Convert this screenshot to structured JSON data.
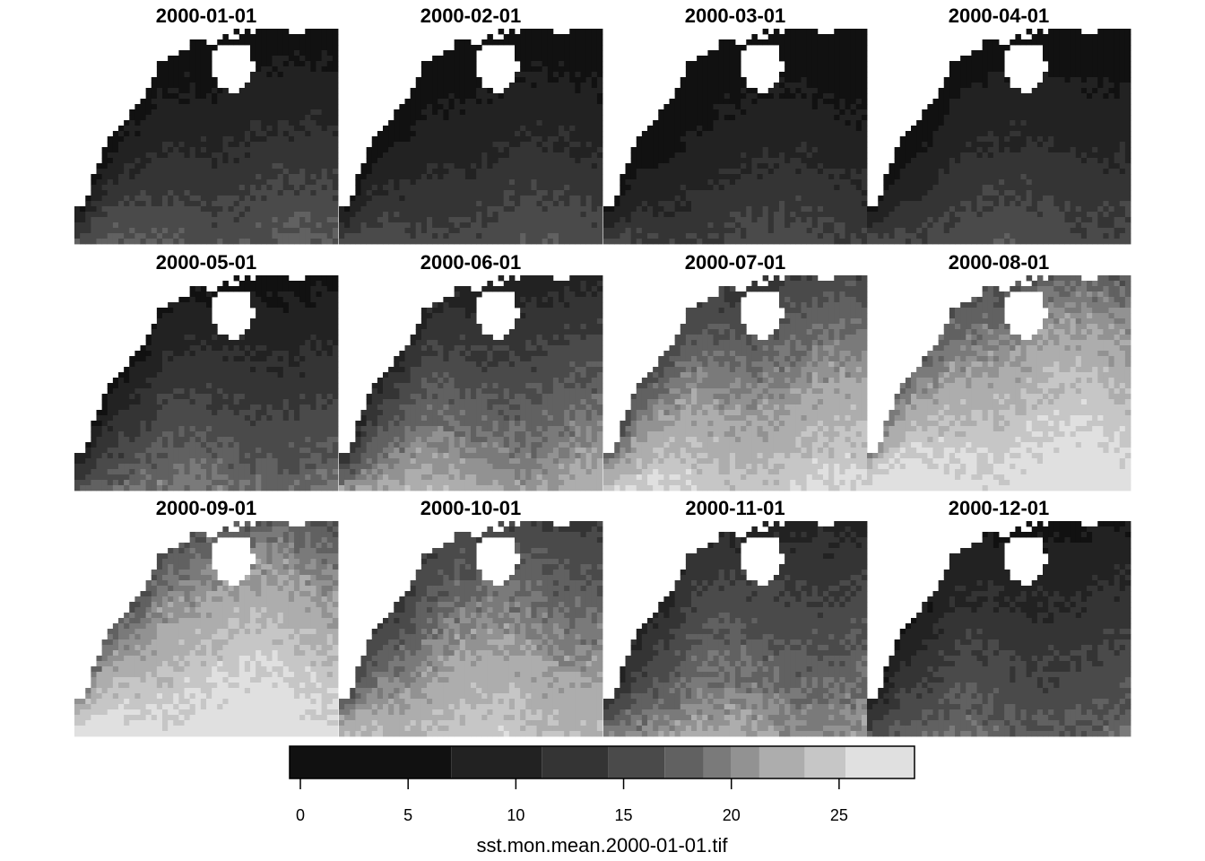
{
  "chart_data": {
    "type": "heatmap",
    "panel_titles": [
      "2000-01-01",
      "2000-02-01",
      "2000-03-01",
      "2000-04-01",
      "2000-05-01",
      "2000-06-01",
      "2000-07-01",
      "2000-08-01",
      "2000-09-01",
      "2000-10-01",
      "2000-11-01",
      "2000-12-01"
    ],
    "panel_layout": {
      "rows": 3,
      "cols": 4
    },
    "field_summary": [
      {
        "north": 3,
        "south": 17
      },
      {
        "north": 2,
        "south": 16
      },
      {
        "north": 1,
        "south": 15
      },
      {
        "north": 3,
        "south": 16
      },
      {
        "north": 5,
        "south": 19
      },
      {
        "north": 9,
        "south": 22
      },
      {
        "north": 14,
        "south": 25
      },
      {
        "north": 17,
        "south": 27
      },
      {
        "north": 17,
        "south": 27
      },
      {
        "north": 14,
        "south": 24
      },
      {
        "north": 10,
        "south": 21
      },
      {
        "north": 6,
        "south": 18
      }
    ],
    "legend": {
      "title": "sst.mon.mean.2000-01-01.tif",
      "ticks": [
        0,
        5,
        10,
        15,
        20,
        25
      ],
      "range": [
        -0.5,
        28.5
      ],
      "breaks": [
        -0.5,
        7,
        11.2,
        14.3,
        16.9,
        18.7,
        20,
        21.3,
        23.4,
        25.3,
        28.5
      ],
      "colors": [
        "#111111",
        "#222222",
        "#343434",
        "#4a4a4a",
        "#616161",
        "#7a7a7a",
        "#929292",
        "#adadad",
        "#c6c6c6",
        "#e0e0e0"
      ]
    },
    "missing_color": "#ffffff"
  }
}
